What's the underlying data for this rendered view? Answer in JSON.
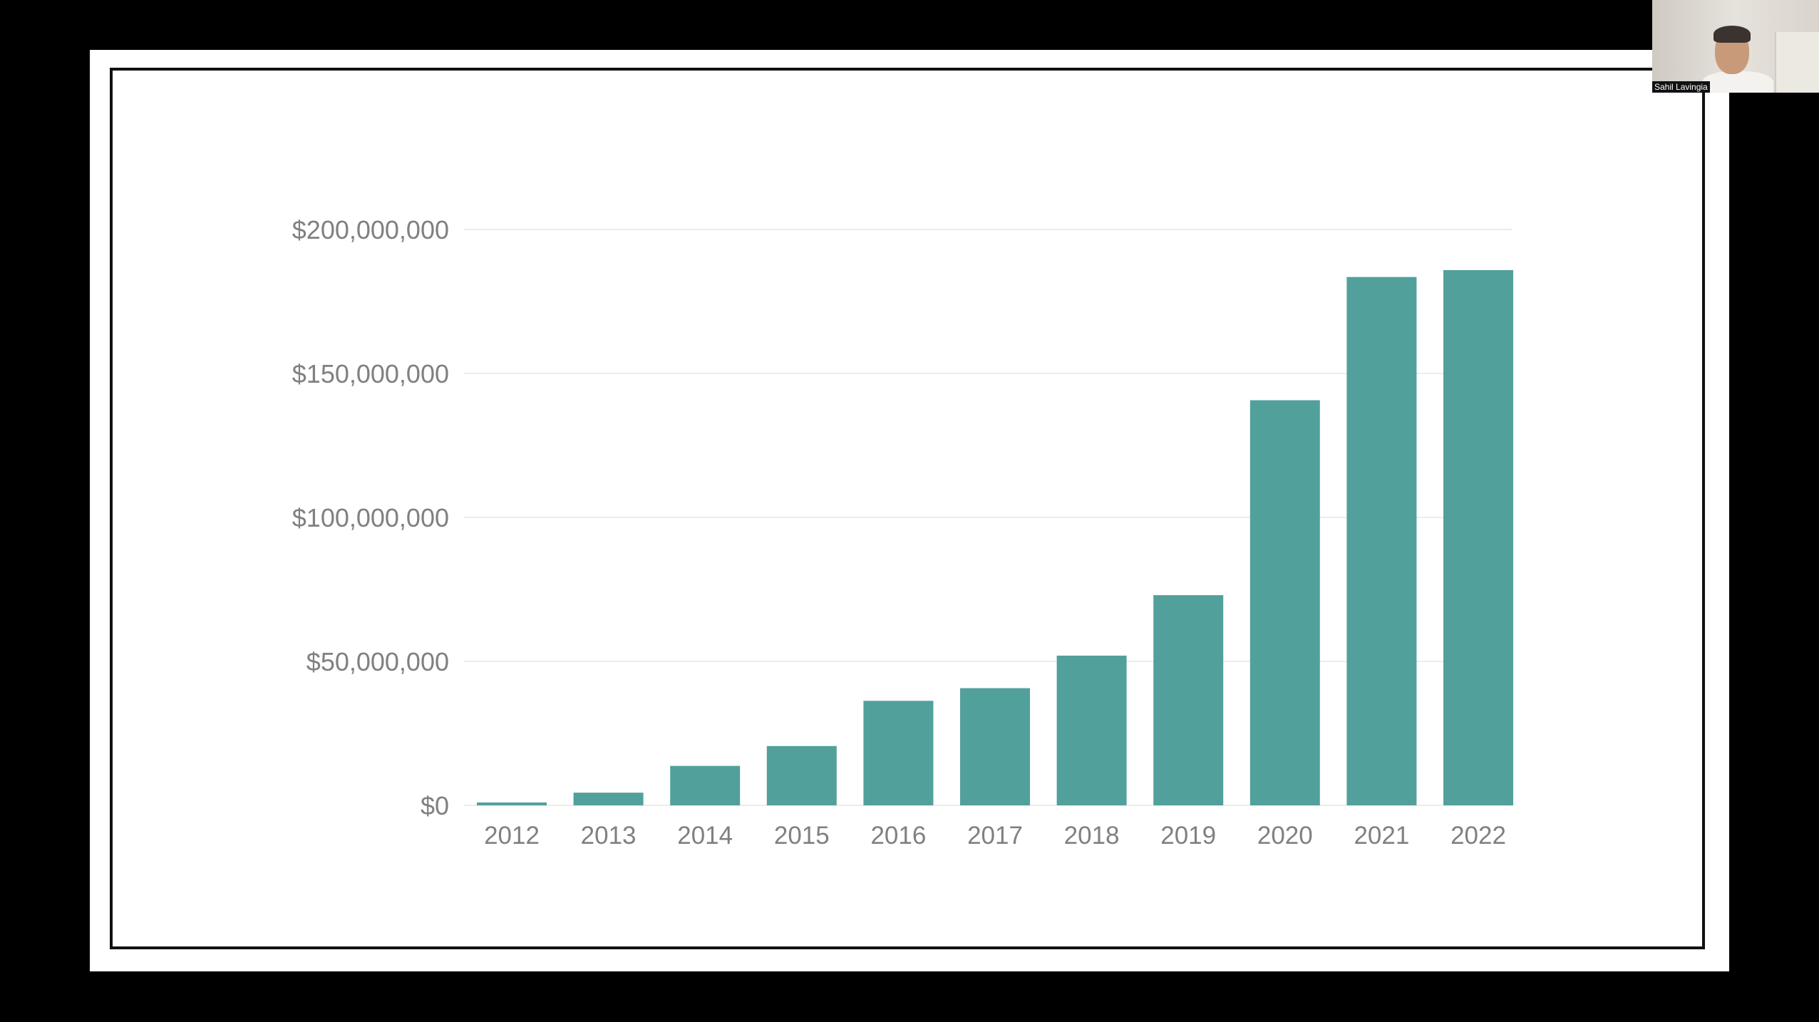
{
  "chart_data": {
    "type": "bar",
    "title": "",
    "xlabel": "",
    "ylabel": "",
    "categories": [
      "2012",
      "2013",
      "2014",
      "2015",
      "2016",
      "2017",
      "2018",
      "2019",
      "2020",
      "2021",
      "2022"
    ],
    "values": [
      1000000,
      4400000,
      13700000,
      20600000,
      36300000,
      40700000,
      52000000,
      73000000,
      140700000,
      183500000,
      185900000
    ],
    "ylim": [
      0,
      200000000
    ],
    "yticks": [
      0,
      50000000,
      100000000,
      150000000,
      200000000
    ],
    "ytick_labels": [
      "$0",
      "$50,000,000",
      "$100,000,000",
      "$150,000,000",
      "$200,000,000"
    ],
    "grid": true,
    "bar_color": "#52a09c"
  },
  "webcam": {
    "participant_name": "Sahil Lavingia"
  }
}
